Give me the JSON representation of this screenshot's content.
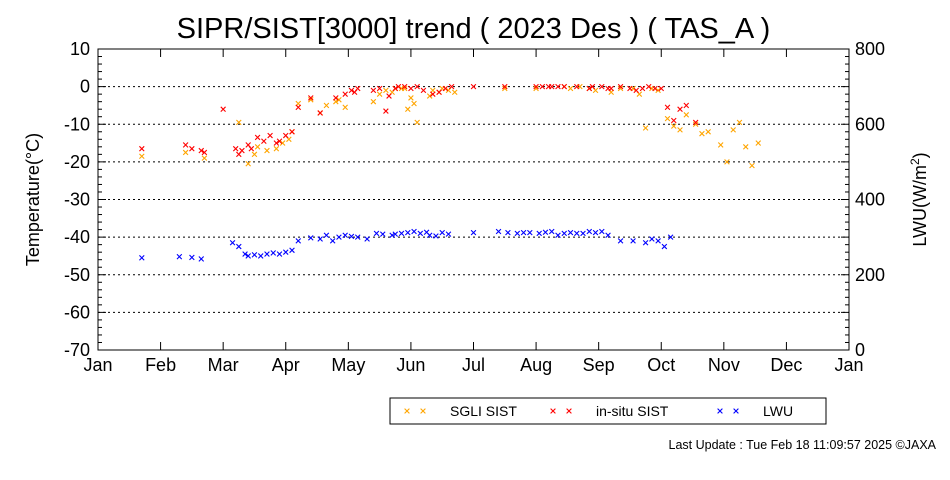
{
  "chart_data": {
    "type": "scatter",
    "title": "SIPR/SIST[3000] trend ( 2023 Des ) ( TAS_A )",
    "xlabel": "",
    "ylabel": "Temperature(°C)",
    "y2label_main": "LWU(W/m",
    "y2label_sup": "2",
    "y2label_close": ")",
    "x_range": [
      0,
      12
    ],
    "ylim": [
      -70,
      10
    ],
    "y2lim": [
      0,
      800
    ],
    "x_ticks": [
      "Jan",
      "Feb",
      "Mar",
      "Apr",
      "May",
      "Jun",
      "Jul",
      "Aug",
      "Sep",
      "Oct",
      "Nov",
      "Dec",
      "Jan"
    ],
    "y_ticks": [
      "10",
      "0",
      "-10",
      "-20",
      "-30",
      "-40",
      "-50",
      "-60",
      "-70"
    ],
    "y2_ticks": [
      "800",
      "600",
      "400",
      "200",
      "0"
    ],
    "grid": "horizontal dotted at major y ticks",
    "legend_position": "bottom-right",
    "series": [
      {
        "name": "SGLI SIST",
        "axis": "left",
        "color": "#ffa500",
        "marker": "x",
        "x": [
          0.7,
          1.4,
          1.7,
          2.25,
          2.4,
          2.5,
          2.55,
          2.7,
          2.85,
          2.95,
          3.05,
          3.1,
          3.2,
          3.4,
          3.55,
          3.65,
          3.8,
          3.85,
          3.95,
          4.4,
          4.5,
          4.6,
          4.7,
          4.75,
          4.85,
          4.9,
          4.95,
          5.0,
          5.05,
          5.1,
          5.3,
          5.35,
          5.45,
          5.5,
          5.6,
          5.7,
          6.5,
          7.0,
          7.45,
          7.55,
          7.7,
          7.85,
          7.95,
          8.2,
          8.35,
          8.55,
          8.65,
          8.75,
          8.85,
          8.95,
          9.1,
          9.2,
          9.3,
          9.4,
          9.55,
          9.65,
          9.75,
          9.95,
          10.05,
          10.15,
          10.25,
          10.35,
          10.45,
          10.55
        ],
        "y": [
          -18.5,
          -17.5,
          -19.0,
          -9.5,
          -20.5,
          -18.0,
          -16.0,
          -17.0,
          -16.5,
          -15.0,
          -14.0,
          -12.0,
          -4.5,
          -3.5,
          -7.0,
          -5.0,
          -4.0,
          -3.5,
          -5.5,
          -4.0,
          -2.0,
          -1.0,
          -1.5,
          -0.5,
          -0.5,
          -0.5,
          -6.0,
          -3.0,
          -4.5,
          -9.5,
          -2.5,
          -1.0,
          -1.5,
          -0.5,
          -1.0,
          -1.5,
          -0.5,
          -0.5,
          0.0,
          -0.5,
          0.0,
          -0.5,
          -1.0,
          -1.5,
          -0.5,
          -0.5,
          -2.0,
          -11.0,
          -0.5,
          -1.0,
          -8.5,
          -10.5,
          -11.5,
          -7.5,
          -10.0,
          -12.5,
          -12.0,
          -15.5,
          -20.0,
          -11.5,
          -9.5,
          -16.0,
          -21.0,
          -15.0
        ],
        "note": "approximate values read from plot"
      },
      {
        "name": "in-situ SIST",
        "axis": "left",
        "color": "#ff0000",
        "marker": "x",
        "x": [
          0.7,
          1.4,
          1.5,
          1.65,
          1.7,
          2.0,
          2.2,
          2.25,
          2.3,
          2.4,
          2.45,
          2.55,
          2.65,
          2.75,
          2.85,
          2.9,
          3.0,
          3.1,
          3.2,
          3.4,
          3.55,
          3.8,
          3.95,
          4.05,
          4.1,
          4.15,
          4.4,
          4.5,
          4.6,
          4.65,
          4.75,
          4.8,
          4.9,
          5.0,
          5.1,
          5.2,
          5.35,
          5.45,
          5.55,
          5.65,
          6.0,
          6.5,
          7.0,
          7.1,
          7.2,
          7.25,
          7.35,
          7.45,
          7.65,
          7.85,
          7.9,
          8.05,
          8.15,
          8.2,
          8.35,
          8.5,
          8.6,
          8.7,
          8.8,
          8.9,
          9.0,
          9.1,
          9.2,
          9.3,
          9.4,
          9.55
        ],
        "y": [
          -16.5,
          -15.5,
          -16.5,
          -17.0,
          -17.5,
          -6.0,
          -16.5,
          -18.0,
          -17.0,
          -15.5,
          -16.5,
          -13.5,
          -14.5,
          -13.0,
          -15.0,
          -14.5,
          -13.0,
          -12.0,
          -5.5,
          -3.0,
          -7.0,
          -3.0,
          -2.0,
          -1.0,
          -1.5,
          -0.5,
          -1.0,
          -0.5,
          -6.5,
          -2.5,
          -0.5,
          0.0,
          0.0,
          -0.5,
          0.0,
          -1.0,
          -2.0,
          -1.5,
          -0.5,
          0.0,
          0.0,
          0.0,
          0.0,
          0.0,
          0.0,
          0.0,
          0.0,
          0.0,
          0.0,
          -0.5,
          0.0,
          0.0,
          -0.5,
          -0.5,
          0.0,
          -0.5,
          -1.0,
          -0.5,
          0.0,
          -0.5,
          -0.5,
          -5.5,
          -9.0,
          -6.0,
          -5.0,
          -9.5
        ],
        "note": "approximate values read from plot"
      },
      {
        "name": "LWU",
        "axis": "right",
        "color": "#0000ff",
        "marker": "x",
        "x": [
          0.7,
          1.3,
          1.5,
          1.65,
          2.15,
          2.25,
          2.35,
          2.4,
          2.5,
          2.6,
          2.7,
          2.8,
          2.9,
          3.0,
          3.1,
          3.2,
          3.4,
          3.55,
          3.65,
          3.75,
          3.85,
          3.95,
          4.05,
          4.15,
          4.3,
          4.45,
          4.55,
          4.7,
          4.75,
          4.85,
          4.95,
          5.05,
          5.15,
          5.25,
          5.3,
          5.4,
          5.5,
          5.6,
          6.0,
          6.4,
          6.55,
          6.7,
          6.8,
          6.9,
          7.05,
          7.15,
          7.25,
          7.35,
          7.45,
          7.55,
          7.65,
          7.75,
          7.85,
          7.95,
          8.05,
          8.15,
          8.35,
          8.55,
          8.75,
          8.85,
          8.95,
          9.05,
          9.15
        ],
        "y": [
          245,
          248,
          246,
          242,
          285,
          275,
          255,
          250,
          253,
          250,
          255,
          258,
          255,
          260,
          265,
          290,
          298,
          295,
          305,
          290,
          300,
          305,
          302,
          300,
          295,
          310,
          308,
          305,
          308,
          310,
          312,
          315,
          310,
          313,
          305,
          303,
          312,
          308,
          312,
          315,
          312,
          310,
          312,
          312,
          310,
          313,
          315,
          305,
          310,
          312,
          310,
          310,
          315,
          312,
          315,
          305,
          290,
          290,
          285,
          295,
          290,
          275,
          300
        ],
        "note": "approximate values read from plot"
      }
    ],
    "footer": "Last Update : Tue Feb 18 11:09:57 2025  ©JAXA"
  }
}
